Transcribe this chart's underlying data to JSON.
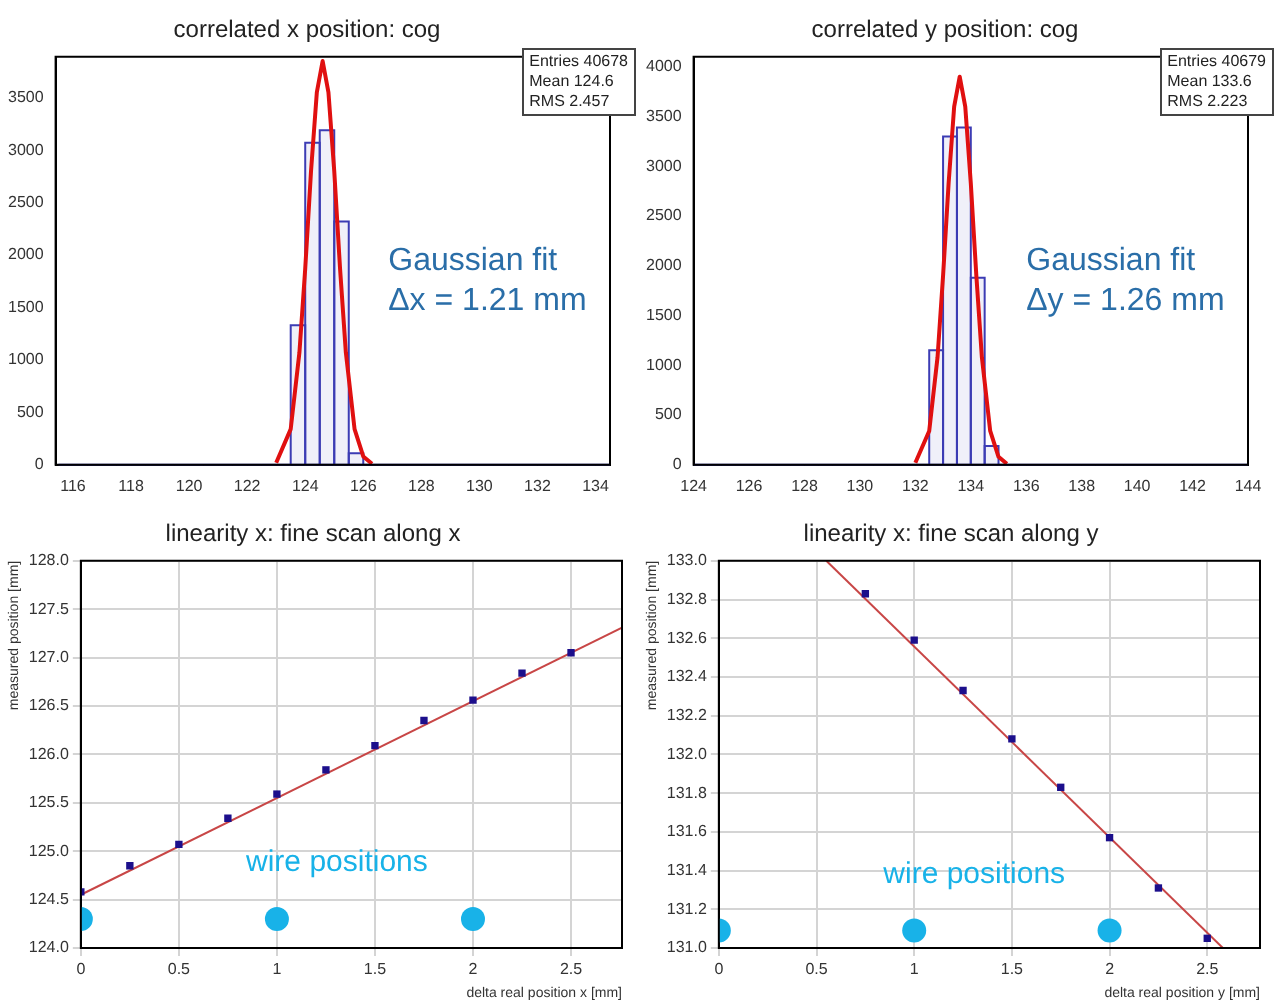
{
  "chart_data": [
    {
      "type": "histogram",
      "title": "correlated x position: cog",
      "bins": [
        115.5,
        116,
        116.5,
        117,
        117.5,
        118,
        118.5,
        119,
        119.5,
        120,
        120.5,
        121,
        121.5,
        122,
        122.5,
        123,
        123.5,
        124,
        124.5,
        125,
        125.5,
        126,
        126.5,
        127,
        127.5,
        128,
        128.5,
        129,
        129.5,
        130,
        130.5,
        131,
        131.5,
        132,
        132.5,
        133,
        133.5,
        134,
        134.5
      ],
      "values": [
        0,
        0,
        0,
        0,
        0,
        0,
        0,
        0,
        0,
        0,
        0,
        0,
        0,
        0,
        0,
        0,
        1330,
        3070,
        3190,
        2320,
        110,
        0,
        0,
        0,
        0,
        0,
        0,
        0,
        0,
        0,
        0,
        0,
        0,
        0,
        0,
        0,
        0,
        0
      ],
      "color": "#3c3cb4",
      "series": [
        {
          "type": "line",
          "x": [
            123,
            123.5,
            123.8,
            124,
            124.2,
            124.4,
            124.6,
            124.8,
            125,
            125.2,
            125.4,
            125.7,
            126,
            126.3
          ],
          "values": [
            20,
            340,
            1070,
            1870,
            2800,
            3550,
            3850,
            3550,
            2800,
            1870,
            1070,
            340,
            80,
            10
          ],
          "color": "#e01010"
        }
      ],
      "xlim": [
        115.4,
        134.5
      ],
      "xticks": [
        116,
        118,
        120,
        122,
        124,
        126,
        128,
        130,
        132,
        134
      ],
      "ylim": [
        0,
        3890
      ],
      "yticks": [
        0,
        500,
        1000,
        1500,
        2000,
        2500,
        3000,
        3500
      ],
      "annotations": [
        "Entries 40678",
        "Mean 124.6",
        "RMS 2.457",
        "Gaussian fit",
        "Δx = 1.21 mm"
      ]
    },
    {
      "type": "histogram",
      "title": "correlated y position: cog",
      "bins": [
        124,
        124.5,
        125,
        125.5,
        126,
        126.5,
        127,
        127.5,
        128,
        128.5,
        129,
        129.5,
        130,
        130.5,
        131,
        131.5,
        132,
        132.5,
        133,
        133.5,
        134,
        134.5,
        135,
        135.5,
        136,
        136.5,
        137,
        137.5,
        138,
        138.5,
        139,
        139.5,
        140,
        140.5,
        141,
        141.5,
        142,
        142.5,
        143,
        143.5,
        144
      ],
      "values": [
        0,
        0,
        0,
        0,
        0,
        0,
        0,
        0,
        0,
        0,
        0,
        0,
        0,
        0,
        0,
        0,
        0,
        1150,
        3300,
        3390,
        1880,
        190,
        0,
        0,
        0,
        0,
        0,
        0,
        0,
        0,
        0,
        0,
        0,
        0,
        0,
        0,
        0,
        0,
        0,
        0
      ],
      "color": "#3c3cb4",
      "series": [
        {
          "type": "line",
          "x": [
            132,
            132.5,
            132.8,
            133,
            133.2,
            133.4,
            133.6,
            133.8,
            134,
            134.2,
            134.4,
            134.7,
            135,
            135.3
          ],
          "values": [
            20,
            340,
            1080,
            1900,
            2830,
            3600,
            3900,
            3600,
            2830,
            1900,
            1080,
            340,
            80,
            10
          ],
          "color": "#e01010"
        }
      ],
      "xlim": [
        124,
        144
      ],
      "xticks": [
        124,
        126,
        128,
        130,
        132,
        134,
        136,
        138,
        140,
        142,
        144
      ],
      "ylim": [
        0,
        4100
      ],
      "yticks": [
        0,
        500,
        1000,
        1500,
        2000,
        2500,
        3000,
        3500,
        4000
      ],
      "annotations": [
        "Entries 40679",
        "Mean 133.6",
        "RMS 2.223",
        "Gaussian fit",
        "Δy = 1.26 mm"
      ]
    },
    {
      "type": "scatter",
      "title": "linearity x: fine scan along x",
      "ylabel": "measured position [mm]",
      "xlabel": "delta real position x [mm]",
      "grid": true,
      "series": [
        {
          "type": "scatter",
          "x": [
            0,
            0.25,
            0.5,
            0.75,
            1,
            1.25,
            1.5,
            1.75,
            2,
            2.25,
            2.5
          ],
          "values": [
            124.58,
            124.85,
            125.07,
            125.34,
            125.59,
            125.84,
            126.09,
            126.35,
            126.56,
            126.84,
            127.05
          ],
          "color": "#1c0f8c",
          "marker": "square"
        },
        {
          "type": "line",
          "x": [
            0,
            2.76
          ],
          "values": [
            124.55,
            127.31
          ],
          "color": "#c84646",
          "marker": "none"
        },
        {
          "type": "scatter",
          "name": "wire positions",
          "x": [
            0,
            1,
            2
          ],
          "values": [
            124.3,
            124.3,
            124.3
          ],
          "color": "#18b2e8",
          "marker": "circle"
        }
      ],
      "xlim": [
        0,
        2.76
      ],
      "xticks": [
        0,
        0.5,
        1,
        1.5,
        2,
        2.5
      ],
      "ylim": [
        124,
        128
      ],
      "yticks": [
        {
          "value": 124,
          "label": "124.0"
        },
        124.5,
        {
          "value": 125,
          "label": "125.0"
        },
        125.5,
        {
          "value": 126,
          "label": "126.0"
        },
        126.5,
        {
          "value": 127,
          "label": "127.0"
        },
        127.5,
        {
          "value": 128,
          "label": "128.0"
        }
      ]
    },
    {
      "type": "scatter",
      "title": "linearity x: fine scan along y",
      "ylabel": "measured position [mm]",
      "xlabel": "delta real position y [mm]",
      "grid": true,
      "series": [
        {
          "type": "scatter",
          "x": [
            0.75,
            1,
            1.25,
            1.5,
            1.75,
            2,
            2.25,
            2.5
          ],
          "values": [
            132.83,
            132.59,
            132.33,
            132.08,
            131.83,
            131.57,
            131.31,
            131.05
          ],
          "color": "#1c0f8c",
          "marker": "square"
        },
        {
          "type": "line",
          "x": [
            0.55,
            2.58
          ],
          "values": [
            133,
            131
          ],
          "color": "#c84646",
          "marker": "none"
        },
        {
          "type": "scatter",
          "name": "wire positions",
          "x": [
            0,
            1,
            2
          ],
          "values": [
            131.09,
            131.09,
            131.09
          ],
          "color": "#18b2e8",
          "marker": "circle"
        }
      ],
      "xlim": [
        0,
        2.77
      ],
      "xticks": [
        0,
        0.5,
        1,
        1.5,
        2,
        2.5
      ],
      "ylim": [
        131,
        133
      ],
      "yticks": [
        {
          "value": 131,
          "label": "131.0"
        },
        131.2,
        131.4,
        131.6,
        131.8,
        {
          "value": 132,
          "label": "132.0"
        },
        132.2,
        132.4,
        132.6,
        132.8,
        {
          "value": 133,
          "label": "133.0"
        }
      ]
    }
  ]
}
